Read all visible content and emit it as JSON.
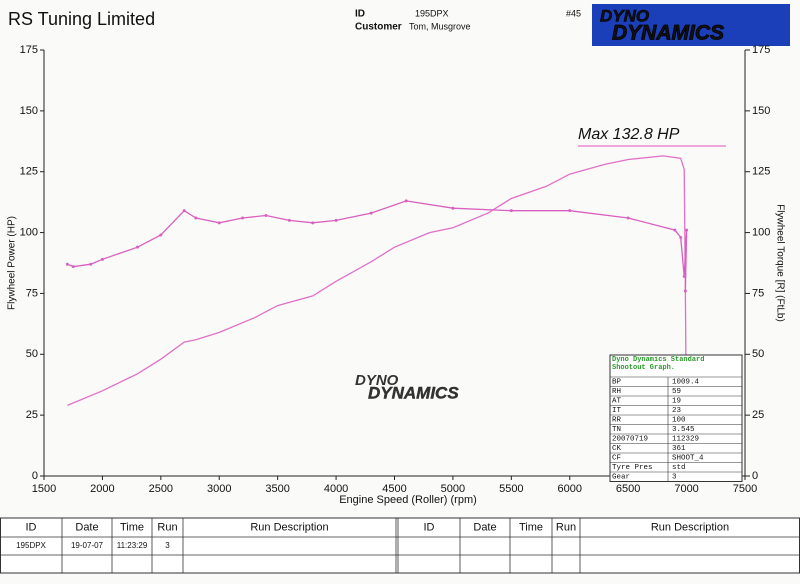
{
  "header": {
    "company": "RS Tuning Limited",
    "id_label": "ID",
    "id_value": "195DPX",
    "customer_label": "Customer",
    "customer_value": "Tom, Musgrove",
    "sheet_no": "#45",
    "logo_top": "DYNO",
    "logo_bottom": "DYNAMICS"
  },
  "chart_data": {
    "type": "line",
    "x_label": "Engine Speed (Roller) (rpm)",
    "y_label": "Flywheel Power (HP)",
    "y2_label": "Flywheel Torque [R] (FtLb)",
    "annotation": "Max 132.8 HP",
    "xlim": [
      1500,
      7500
    ],
    "xticks": [
      1500,
      2000,
      2500,
      3000,
      3500,
      4000,
      4500,
      5000,
      5500,
      6000,
      6500,
      7000,
      7500
    ],
    "ylim": [
      0,
      175
    ],
    "yticks": [
      0,
      25,
      50,
      75,
      100,
      125,
      150,
      175
    ],
    "y2lim": [
      0,
      175
    ],
    "y2ticks": [
      0,
      25,
      50,
      75,
      100,
      125,
      150,
      175
    ],
    "grid": false,
    "series": [
      {
        "name": "Power",
        "color": "#e070c8",
        "markers": false,
        "x": [
          1700,
          2000,
          2300,
          2500,
          2700,
          2800,
          3000,
          3300,
          3500,
          3800,
          4000,
          4300,
          4500,
          4800,
          5000,
          5300,
          5500,
          5800,
          6000,
          6300,
          6500,
          6800,
          6950,
          6980,
          6990,
          7000
        ],
        "values": [
          29,
          35,
          42,
          48,
          55,
          56,
          59,
          65,
          70,
          74,
          80,
          88,
          94,
          100,
          102,
          108,
          114,
          119,
          124,
          128,
          130,
          131.5,
          130.5,
          126,
          75,
          8
        ]
      },
      {
        "name": "Torque",
        "color": "#d860c0",
        "markers": true,
        "axis": "y2",
        "x": [
          1700,
          1750,
          1900,
          2000,
          2300,
          2500,
          2700,
          2800,
          3000,
          3200,
          3400,
          3600,
          3800,
          4000,
          4300,
          4600,
          5000,
          5500,
          6000,
          6500,
          6900,
          6950,
          6980,
          7000,
          6990
        ],
        "values": [
          87,
          86,
          87,
          89,
          94,
          99,
          109,
          106,
          104,
          106,
          107,
          105,
          104,
          105,
          108,
          113,
          110,
          109,
          109,
          106,
          101,
          98,
          82,
          101,
          76
        ]
      }
    ]
  },
  "info_table": {
    "title": "Dyno Dynamics Standard Shootout Graph.",
    "rows": [
      [
        "BP",
        "1009.4"
      ],
      [
        "RH",
        "59"
      ],
      [
        "AT",
        "19"
      ],
      [
        "IT",
        "23"
      ],
      [
        "RR",
        "100"
      ],
      [
        "TN",
        "3.545"
      ],
      [
        "20070719",
        "112329"
      ],
      [
        "CK",
        "361"
      ],
      [
        "CF",
        "SHOOT_4"
      ],
      [
        "Tyre Pres",
        "std"
      ],
      [
        "Gear",
        "3"
      ]
    ]
  },
  "run_table": {
    "columns": [
      "ID",
      "Date",
      "Time",
      "Run",
      "Run Description"
    ],
    "rows": [
      [
        "195DPX",
        "19-07-07",
        "11:23:29",
        "3"
      ]
    ]
  }
}
